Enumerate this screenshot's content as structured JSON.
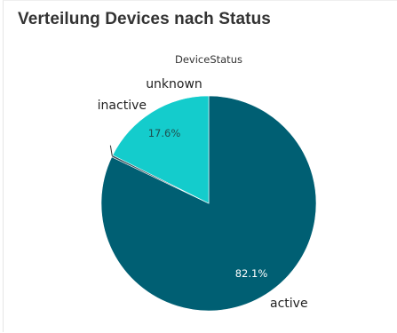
{
  "title": "Verteilung Devices nach Status",
  "chart_data": {
    "type": "pie",
    "title": "DeviceStatus",
    "slices": [
      {
        "label": "active",
        "value": 82.1,
        "pct_label": "82.1%",
        "color": "#005f73",
        "text_color": "#ffffff"
      },
      {
        "label": "unknown",
        "value": 0.3,
        "pct_label": "",
        "color": "#3a4f5c",
        "text_color": "#333333"
      },
      {
        "label": "inactive",
        "value": 17.6,
        "pct_label": "17.6%",
        "color": "#14cccc",
        "text_color": "#1f4f4f"
      }
    ]
  }
}
